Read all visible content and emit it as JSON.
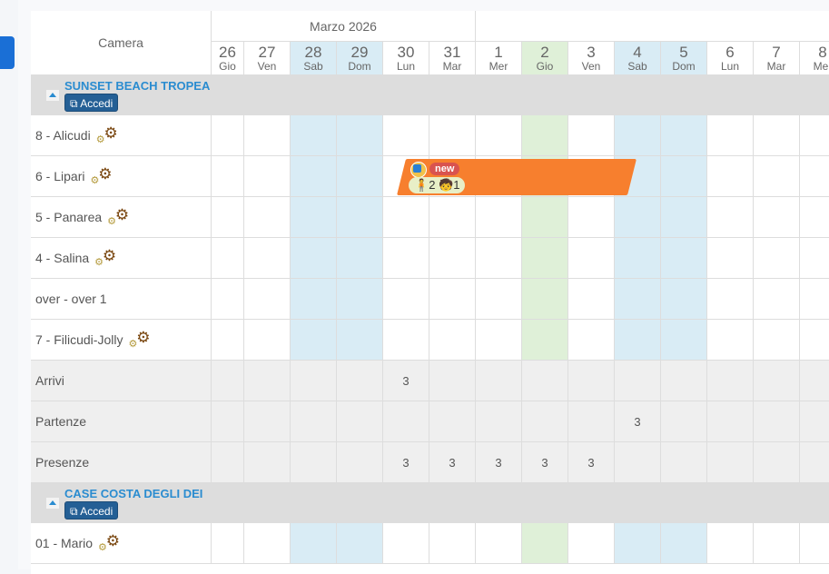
{
  "header": {
    "camera_label": "Camera",
    "months": [
      {
        "label": "Marzo 2026"
      },
      {
        "label": ""
      }
    ]
  },
  "days": [
    {
      "num": "26",
      "name": "Gio",
      "type": "normal"
    },
    {
      "num": "27",
      "name": "Ven",
      "type": "normal"
    },
    {
      "num": "28",
      "name": "Sab",
      "type": "weekend"
    },
    {
      "num": "29",
      "name": "Dom",
      "type": "weekend"
    },
    {
      "num": "30",
      "name": "Lun",
      "type": "normal"
    },
    {
      "num": "31",
      "name": "Mar",
      "type": "normal"
    },
    {
      "num": "1",
      "name": "Mer",
      "type": "normal"
    },
    {
      "num": "2",
      "name": "Gio",
      "type": "today"
    },
    {
      "num": "3",
      "name": "Ven",
      "type": "normal"
    },
    {
      "num": "4",
      "name": "Sab",
      "type": "weekend"
    },
    {
      "num": "5",
      "name": "Dom",
      "type": "weekend"
    },
    {
      "num": "6",
      "name": "Lun",
      "type": "normal"
    },
    {
      "num": "7",
      "name": "Mar",
      "type": "normal"
    },
    {
      "num": "8",
      "name": "Mer",
      "type": "normal"
    }
  ],
  "groups": [
    {
      "name": "SUNSET BEACH TROPEA",
      "access_label": "Accedi",
      "rooms": [
        {
          "label": "8 - Alicudi",
          "settings": true
        },
        {
          "label": "6 - Lipari",
          "settings": true
        },
        {
          "label": "5 - Panarea",
          "settings": true
        },
        {
          "label": "4 - Salina",
          "settings": true
        },
        {
          "label": "over - over 1",
          "settings": false
        },
        {
          "label": "7 - Filicudi-Jolly",
          "settings": true
        }
      ],
      "stats": [
        {
          "label": "Arrivi",
          "values": [
            "",
            "",
            "",
            "",
            "3",
            "",
            "",
            "",
            "",
            "",
            "",
            "",
            "",
            ""
          ]
        },
        {
          "label": "Partenze",
          "values": [
            "",
            "",
            "",
            "",
            "",
            "",
            "",
            "",
            "",
            "3",
            "",
            "",
            "",
            ""
          ]
        },
        {
          "label": "Presenze",
          "values": [
            "",
            "",
            "",
            "",
            "3",
            "3",
            "3",
            "3",
            "3",
            "",
            "",
            "",
            "",
            ""
          ]
        }
      ]
    },
    {
      "name": "CASE COSTA DEGLI DEI",
      "access_label": "Accedi",
      "rooms": [
        {
          "label": "01 - Mario",
          "settings": true
        }
      ],
      "stats": []
    }
  ],
  "booking": {
    "room": "6 - Lipari",
    "start": "30",
    "end": "4",
    "status": "new",
    "adults": "2",
    "children": "1",
    "color": "#f77f2e"
  },
  "colors": {
    "weekend": "#d9ecf5",
    "today": "#dff0d8",
    "accent": "#2a8cd0",
    "button": "#245f95"
  },
  "icons": {
    "settings": "gears-icon",
    "collapse": "caret-up-icon",
    "access": "external-link-icon",
    "adult": "adult-icon",
    "child": "child-icon",
    "source": "booking-source-icon"
  }
}
